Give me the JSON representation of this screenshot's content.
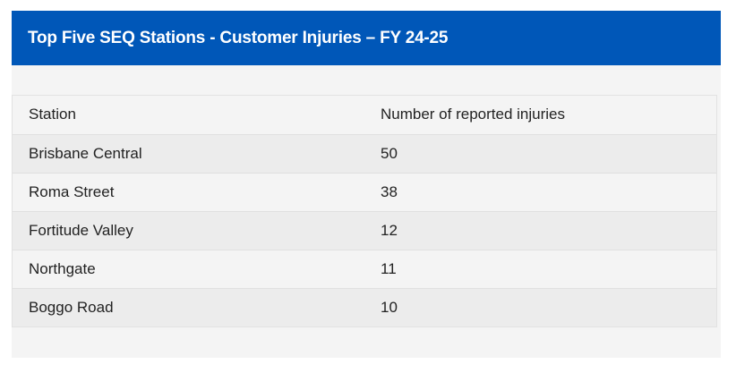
{
  "title": "Top Five SEQ Stations - Customer Injuries – FY 24-25",
  "table": {
    "headers": [
      "Station",
      "Number of reported injuries"
    ],
    "rows": [
      {
        "station": "Brisbane Central",
        "injuries": "50"
      },
      {
        "station": "Roma Street",
        "injuries": "38"
      },
      {
        "station": "Fortitude Valley",
        "injuries": "12"
      },
      {
        "station": "Northgate",
        "injuries": "11"
      },
      {
        "station": "Boggo Road",
        "injuries": "10"
      }
    ]
  },
  "colors": {
    "header_bg": "#0057b8",
    "header_text": "#ffffff",
    "panel_bg": "#f4f4f4",
    "row_alt_bg": "#ececec"
  }
}
